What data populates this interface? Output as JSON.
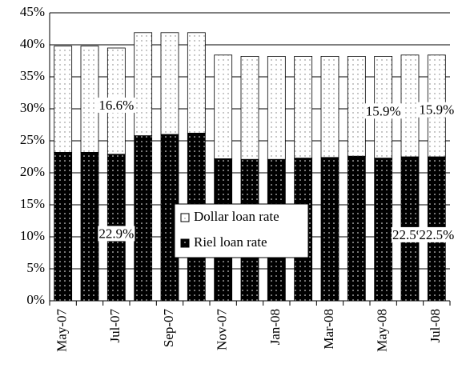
{
  "chart_data": {
    "type": "stacked_bar",
    "categories": [
      "May-07",
      null,
      "Jul-07",
      null,
      "Sep-07",
      null,
      "Nov-07",
      null,
      "Jan-08",
      null,
      "Mar-08",
      null,
      "May-08",
      null,
      "Jul-08"
    ],
    "series": [
      {
        "name": "Riel loan rate",
        "color": "#000000",
        "values": [
          23.2,
          23.2,
          22.9,
          25.8,
          26.0,
          26.2,
          22.2,
          22.1,
          22.1,
          22.3,
          22.4,
          22.6,
          22.3,
          22.5,
          22.5
        ],
        "value_labels": [
          null,
          null,
          "22.9%",
          null,
          null,
          null,
          null,
          null,
          null,
          null,
          null,
          null,
          null,
          "22.5%",
          "22.5%"
        ]
      },
      {
        "name": "Dollar loan rate",
        "color": "#ffffff",
        "values": [
          16.6,
          16.6,
          16.6,
          16.1,
          15.9,
          15.7,
          16.2,
          16.1,
          16.1,
          15.9,
          15.8,
          15.6,
          15.9,
          15.9,
          15.9
        ],
        "value_labels": [
          null,
          null,
          "16.6%",
          null,
          null,
          null,
          null,
          null,
          null,
          null,
          null,
          null,
          "15.9%",
          null,
          "15.9%"
        ]
      }
    ],
    "ylim": [
      0,
      45
    ],
    "yticks": [
      {
        "value": 0,
        "label": "0%"
      },
      {
        "value": 5,
        "label": "5%"
      },
      {
        "value": 10,
        "label": "10%"
      },
      {
        "value": 15,
        "label": "15%"
      },
      {
        "value": 20,
        "label": "20%"
      },
      {
        "value": 25,
        "label": "25%"
      },
      {
        "value": 30,
        "label": "30%"
      },
      {
        "value": 35,
        "label": "35%"
      },
      {
        "value": 40,
        "label": "40%"
      },
      {
        "value": 45,
        "label": "45%"
      }
    ],
    "grid": true
  }
}
